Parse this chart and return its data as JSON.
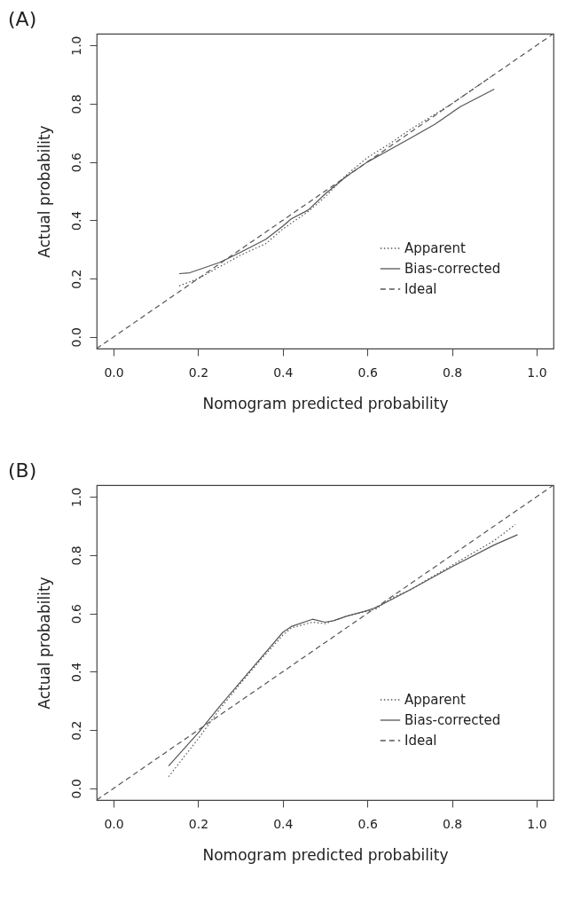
{
  "chart_data": [
    {
      "type": "line",
      "title": "(A)",
      "xlabel": "Nomogram predicted probability",
      "ylabel": "Actual probability",
      "xlim": [
        -0.04,
        1.04
      ],
      "ylim": [
        -0.04,
        1.04
      ],
      "xticks": [
        {
          "value": 0,
          "label": "0.0"
        },
        {
          "value": 0.2,
          "label": "0.2"
        },
        {
          "value": 0.4,
          "label": "0.4"
        },
        {
          "value": 0.6,
          "label": "0.6"
        },
        {
          "value": 0.8,
          "label": "0.8"
        },
        {
          "value": 1,
          "label": "1.0"
        }
      ],
      "yticks": [
        {
          "value": 0,
          "label": "0.0"
        },
        {
          "value": 0.2,
          "label": "0.2"
        },
        {
          "value": 0.4,
          "label": "0.4"
        },
        {
          "value": 0.6,
          "label": "0.6"
        },
        {
          "value": 0.8,
          "label": "0.8"
        },
        {
          "value": 1,
          "label": "1.0"
        }
      ],
      "legend": "bottom right",
      "marker": "none",
      "grid": false,
      "series": [
        {
          "name": "Apparent",
          "color": "#555555",
          "line_style": "dotted",
          "x": [
            0.155,
            0.2,
            0.25,
            0.3,
            0.36,
            0.4,
            0.46,
            0.5,
            0.55,
            0.6,
            0.65,
            0.7,
            0.8,
            0.9
          ],
          "values": [
            0.175,
            0.2,
            0.24,
            0.28,
            0.32,
            0.37,
            0.43,
            0.48,
            0.555,
            0.615,
            0.66,
            0.71,
            0.8,
            0.9
          ]
        },
        {
          "name": "Bias-corrected",
          "color": "#555555",
          "line_style": "solid",
          "x": [
            0.155,
            0.18,
            0.2,
            0.25,
            0.3,
            0.36,
            0.4,
            0.42,
            0.46,
            0.5,
            0.55,
            0.6,
            0.65,
            0.7,
            0.76,
            0.82,
            0.9
          ],
          "values": [
            0.217,
            0.22,
            0.23,
            0.255,
            0.29,
            0.335,
            0.38,
            0.405,
            0.435,
            0.49,
            0.55,
            0.6,
            0.64,
            0.68,
            0.73,
            0.79,
            0.85
          ]
        },
        {
          "name": "Ideal",
          "color": "#555555",
          "line_style": "dashed",
          "x": [
            -0.04,
            1.04
          ],
          "values": [
            -0.04,
            1.04
          ]
        }
      ]
    },
    {
      "type": "line",
      "title": "(B)",
      "xlabel": "Nomogram predicted probability",
      "ylabel": "Actual probability",
      "xlim": [
        -0.04,
        1.04
      ],
      "ylim": [
        -0.04,
        1.04
      ],
      "xticks": [
        {
          "value": 0,
          "label": "0.0"
        },
        {
          "value": 0.2,
          "label": "0.2"
        },
        {
          "value": 0.4,
          "label": "0.4"
        },
        {
          "value": 0.6,
          "label": "0.6"
        },
        {
          "value": 0.8,
          "label": "0.8"
        },
        {
          "value": 1,
          "label": "1.0"
        }
      ],
      "yticks": [
        {
          "value": 0,
          "label": "0.0"
        },
        {
          "value": 0.2,
          "label": "0.2"
        },
        {
          "value": 0.4,
          "label": "0.4"
        },
        {
          "value": 0.6,
          "label": "0.6"
        },
        {
          "value": 0.8,
          "label": "0.8"
        },
        {
          "value": 1,
          "label": "1.0"
        }
      ],
      "legend": "bottom right",
      "marker": "none",
      "grid": false,
      "series": [
        {
          "name": "Apparent",
          "color": "#555555",
          "line_style": "dotted",
          "x": [
            0.13,
            0.2,
            0.25,
            0.3,
            0.35,
            0.4,
            0.42,
            0.47,
            0.5,
            0.55,
            0.62,
            0.66,
            0.7,
            0.8,
            0.9,
            0.95
          ],
          "values": [
            0.04,
            0.17,
            0.27,
            0.36,
            0.445,
            0.525,
            0.55,
            0.57,
            0.565,
            0.59,
            0.615,
            0.655,
            0.68,
            0.765,
            0.85,
            0.905
          ]
        },
        {
          "name": "Bias-corrected",
          "color": "#555555",
          "line_style": "solid",
          "x": [
            0.13,
            0.2,
            0.25,
            0.3,
            0.35,
            0.4,
            0.42,
            0.47,
            0.5,
            0.52,
            0.55,
            0.6,
            0.62,
            0.66,
            0.7,
            0.8,
            0.9,
            0.955
          ],
          "values": [
            0.077,
            0.19,
            0.28,
            0.365,
            0.45,
            0.535,
            0.555,
            0.58,
            0.57,
            0.575,
            0.59,
            0.61,
            0.62,
            0.65,
            0.68,
            0.76,
            0.835,
            0.87
          ]
        },
        {
          "name": "Ideal",
          "color": "#555555",
          "line_style": "dashed",
          "x": [
            -0.04,
            1.04
          ],
          "values": [
            -0.04,
            1.04
          ]
        }
      ]
    }
  ]
}
